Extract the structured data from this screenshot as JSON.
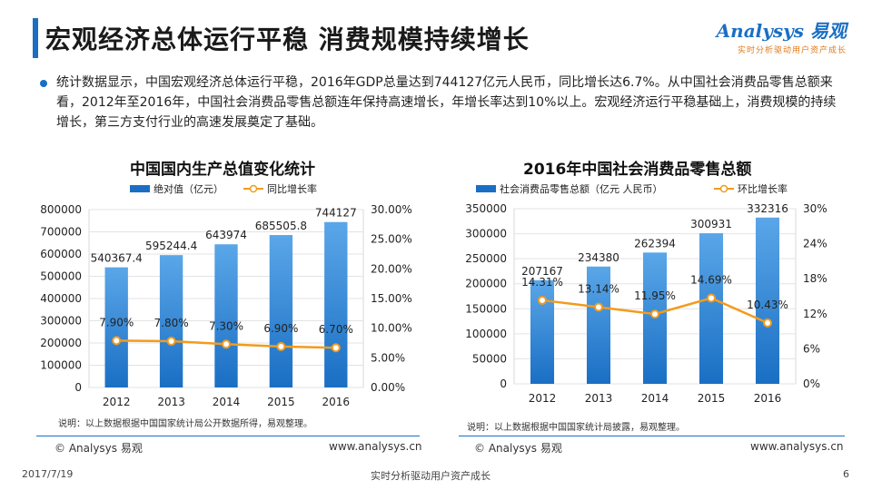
{
  "header": {
    "title": "宏观经济总体运行平稳  消费规模持续增长",
    "logo": "Analysys 易观",
    "logo_tagline": "实时分析驱动用户资产成长"
  },
  "description": "统计数据显示，中国宏观经济总体运行平稳，2016年GDP总量达到744127亿元人民币，同比增长达6.7%。从中国社会消费品零售总额来看，2012年至2016年，中国社会消费品零售总额连年保持高速增长，年增长率达到10%以上。宏观经济运行平稳基础上，消费规模的持续增长，第三方支付行业的高速发展奠定了基础。",
  "gdp": {
    "note": "说明：以上数据根据中国国家统计局公开数据所得，易观整理。",
    "source": "© Analysys 易观",
    "url": "www.analysys.cn"
  },
  "retail": {
    "note": "说明：以上数据根据中国国家统计局披露，易观整理。",
    "source": "© Analysys 易观",
    "url": "www.analysys.cn"
  },
  "footer": {
    "date": "2017/7/19",
    "tagline": "实时分析驱动用户资产成长",
    "page": "6"
  },
  "colors": {
    "bar_top": "#5aa6e8",
    "bar_bottom": "#1a6fc4",
    "line": "#f29b1d",
    "accent": "#1a6fc4"
  },
  "chart_data": [
    {
      "type": "bar",
      "title": "中国国内生产总值变化统计",
      "categories": [
        "2012",
        "2013",
        "2014",
        "2015",
        "2016"
      ],
      "series": [
        {
          "name": "绝对值（亿元）",
          "kind": "bar",
          "axis": "left",
          "values": [
            540367.4,
            595244.4,
            643974,
            685505.8,
            744127
          ],
          "labels": [
            "540367.4",
            "595244.4",
            "643974",
            "685505.8",
            "744127"
          ]
        },
        {
          "name": "同比增长率",
          "kind": "line",
          "axis": "right",
          "values": [
            7.9,
            7.8,
            7.3,
            6.9,
            6.7
          ],
          "labels": [
            "7.90%",
            "7.80%",
            "7.30%",
            "6.90%",
            "6.70%"
          ]
        }
      ],
      "ylim": [
        0,
        800000
      ],
      "yticks": [
        0,
        100000,
        200000,
        300000,
        400000,
        500000,
        600000,
        700000,
        800000
      ],
      "ytick_labels": [
        "0",
        "100000",
        "200000",
        "300000",
        "400000",
        "500000",
        "600000",
        "700000",
        "800000"
      ],
      "y2lim": [
        0,
        30
      ],
      "y2ticks": [
        0,
        5,
        10,
        15,
        20,
        25,
        30
      ],
      "y2tick_labels": [
        "0.00%",
        "5.00%",
        "10.00%",
        "15.00%",
        "20.00%",
        "25.00%",
        "30.00%"
      ],
      "legend": "top"
    },
    {
      "type": "bar",
      "title": "2016年中国社会消费品零售总额",
      "categories": [
        "2012",
        "2013",
        "2014",
        "2015",
        "2016"
      ],
      "series": [
        {
          "name": "社会消费品零售总额（亿元  人民币）",
          "kind": "bar",
          "axis": "left",
          "values": [
            207167,
            234380,
            262394,
            300931,
            332316
          ],
          "labels": [
            "207167",
            "234380",
            "262394",
            "300931",
            "332316"
          ]
        },
        {
          "name": "环比增长率",
          "kind": "line",
          "axis": "right",
          "values": [
            14.31,
            13.14,
            11.95,
            14.69,
            10.43
          ],
          "labels": [
            "14.31%",
            "13.14%",
            "11.95%",
            "14.69%",
            "10.43%"
          ]
        }
      ],
      "ylim": [
        0,
        350000
      ],
      "yticks": [
        0,
        50000,
        100000,
        150000,
        200000,
        250000,
        300000,
        350000
      ],
      "ytick_labels": [
        "0",
        "50000",
        "100000",
        "150000",
        "200000",
        "250000",
        "300000",
        "350000"
      ],
      "y2lim": [
        0,
        30
      ],
      "y2ticks": [
        0,
        6,
        12,
        18,
        24,
        30
      ],
      "y2tick_labels": [
        "0%",
        "6%",
        "12%",
        "18%",
        "24%",
        "30%"
      ],
      "legend": "top"
    }
  ]
}
